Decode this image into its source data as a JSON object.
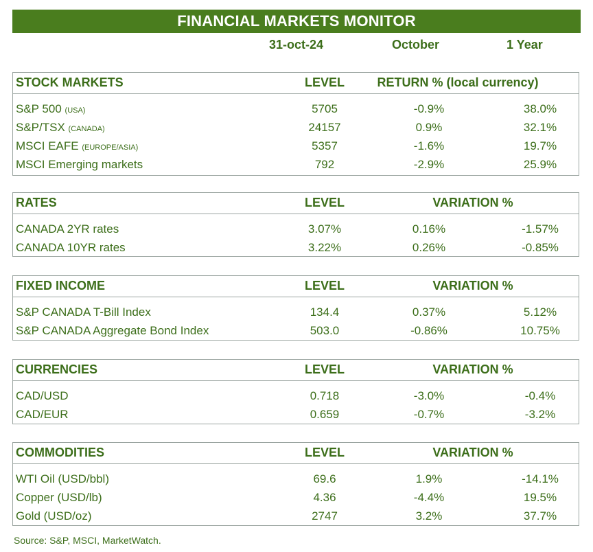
{
  "title": "FINANCIAL MARKETS MONITOR",
  "columns": {
    "date": "31-oct-24",
    "month": "October",
    "year": "1 Year"
  },
  "sections": [
    {
      "title": "STOCK MARKETS",
      "level_label": "LEVEL",
      "variation_label": "RETURN % (local currency)",
      "rows": [
        {
          "name": "S&P 500",
          "tag": "(USA)",
          "level": "5705",
          "month": "-0.9%",
          "year": "38.0%"
        },
        {
          "name": "S&P/TSX",
          "tag": "(CANADA)",
          "level": "24157",
          "month": "0.9%",
          "year": "32.1%"
        },
        {
          "name": "MSCI EAFE",
          "tag": "(EUROPE/ASIA)",
          "level": "5357",
          "month": "-1.6%",
          "year": "19.7%"
        },
        {
          "name": "MSCI Emerging markets",
          "tag": "",
          "level": "792",
          "month": "-2.9%",
          "year": "25.9%"
        }
      ]
    },
    {
      "title": "RATES",
      "level_label": "LEVEL",
      "variation_label": "VARIATION %",
      "rows": [
        {
          "name": "CANADA 2YR rates",
          "tag": "",
          "level": "3.07%",
          "month": "0.16%",
          "year": "-1.57%"
        },
        {
          "name": "CANADA 10YR rates",
          "tag": "",
          "level": "3.22%",
          "month": "0.26%",
          "year": "-0.85%"
        }
      ]
    },
    {
      "title": "FIXED INCOME",
      "level_label": "LEVEL",
      "variation_label": "VARIATION %",
      "rows": [
        {
          "name": "S&P CANADA T-Bill Index",
          "tag": "",
          "level": "134.4",
          "month": "0.37%",
          "year": "5.12%"
        },
        {
          "name": "S&P CANADA Aggregate Bond Index",
          "tag": "",
          "level": "503.0",
          "month": "-0.86%",
          "year": "10.75%"
        }
      ]
    },
    {
      "title": "CURRENCIES",
      "level_label": "LEVEL",
      "variation_label": "VARIATION %",
      "rows": [
        {
          "name": "CAD/USD",
          "tag": "",
          "level": "0.718",
          "month": "-3.0%",
          "year": "-0.4%"
        },
        {
          "name": "CAD/EUR",
          "tag": "",
          "level": "0.659",
          "month": "-0.7%",
          "year": "-3.2%"
        }
      ]
    },
    {
      "title": "COMMODITIES",
      "level_label": "LEVEL",
      "variation_label": "VARIATION %",
      "rows": [
        {
          "name": "WTI Oil (USD/bbl)",
          "tag": "",
          "level": "69.6",
          "month": "1.9%",
          "year": "-14.1%"
        },
        {
          "name": "Copper (USD/lb)",
          "tag": "",
          "level": "4.36",
          "month": "-4.4%",
          "year": "19.5%"
        },
        {
          "name": "Gold (USD/oz)",
          "tag": "",
          "level": "2747",
          "month": "3.2%",
          "year": "37.7%"
        }
      ]
    }
  ],
  "source": "Source: S&P, MSCI, MarketWatch."
}
